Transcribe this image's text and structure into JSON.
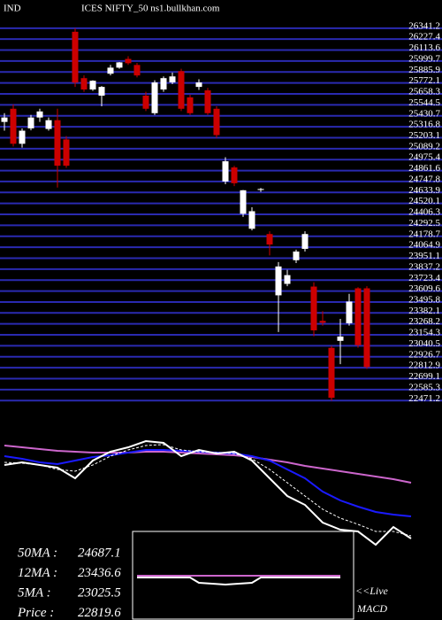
{
  "header": {
    "left": "IND",
    "right": "ICES NIFTY_50  ns1.bullkhan.com"
  },
  "chart_data": [
    {
      "type": "candlestick",
      "open": [
        25367,
        25504,
        25140,
        25300,
        25413,
        25294,
        25385,
        25185,
        26304,
        25822,
        25704,
        25640,
        25868,
        25931,
        26022,
        25959,
        25640,
        25458,
        25704,
        25777,
        25895,
        25622,
        25731,
        25695,
        25504,
        24748,
        24894,
        24412,
        24257,
        24660,
        24202,
        23565,
        23684,
        23930,
        24048,
        23656,
        23300,
        23019,
        23092,
        23274,
        23638,
        23638
      ],
      "high": [
        25458,
        25549,
        25300,
        25440,
        25504,
        25413,
        25504,
        25220,
        26341,
        25850,
        25800,
        25740,
        25960,
        25990,
        26050,
        25980,
        25680,
        25800,
        25840,
        25880,
        25920,
        25650,
        25810,
        25720,
        25530,
        25000,
        24910,
        24660,
        24480,
        24680,
        24230,
        23911,
        23830,
        24040,
        24230,
        23700,
        23400,
        23040,
        23320,
        23580,
        23650,
        23660
      ],
      "low": [
        25276,
        25112,
        25100,
        25280,
        25367,
        25276,
        24685,
        24890,
        25731,
        25680,
        25690,
        25530,
        25850,
        25920,
        25960,
        25830,
        25480,
        25440,
        25680,
        25760,
        25480,
        25440,
        25700,
        25440,
        25200,
        24720,
        24700,
        24380,
        24240,
        24640,
        23980,
        23183,
        23660,
        23900,
        24020,
        23140,
        23250,
        22470,
        22850,
        23250,
        23020,
        22800
      ],
      "close": [
        25413,
        25140,
        25276,
        25413,
        25476,
        25385,
        24912,
        24912,
        25776,
        25704,
        25795,
        25731,
        25931,
        25986,
        25977,
        25850,
        25504,
        25777,
        25822,
        25840,
        25504,
        25458,
        25777,
        25458,
        25230,
        24958,
        24730,
        24657,
        24439,
        24670,
        24093,
        23865,
        23775,
        24020,
        24202,
        23201,
        23280,
        22500,
        23137,
        23500,
        23047,
        22819.6
      ],
      "up_color": "#ffffff",
      "down_color": "#cc0000",
      "grid_color": "#2a2ab0",
      "ylim": [
        22400,
        26450
      ],
      "yticks": [
        26341.2,
        26227.4,
        26113.6,
        25999.7,
        25885.9,
        25772.1,
        25658.3,
        25544.5,
        25430.7,
        25316.8,
        25203.1,
        25089.2,
        24975.4,
        24861.6,
        24747.8,
        24633.9,
        24520.1,
        24406.3,
        24292.5,
        24178.7,
        24064.9,
        23951.1,
        23837.2,
        23723.4,
        23609.6,
        23495.8,
        23382.1,
        23268.2,
        23154.3,
        23040.5,
        22926.7,
        22812.9,
        22699.1,
        22585.3,
        22471.2
      ],
      "grid": true
    },
    {
      "type": "line",
      "x": [
        0,
        2,
        4,
        6,
        8,
        10,
        12,
        14,
        16,
        18,
        20,
        22,
        24,
        26,
        28,
        30,
        32,
        34,
        36,
        38,
        40,
        42,
        44,
        46
      ],
      "xlim": [
        0,
        46
      ],
      "ylim": [
        22400,
        26400
      ],
      "series": [
        {
          "color": "#cc66cc",
          "values": [
            26000,
            25938,
            25877,
            25815,
            25785,
            25754,
            25754,
            25754,
            25785,
            25785,
            25754,
            25723,
            25692,
            25662,
            25600,
            25508,
            25415,
            25292,
            25200,
            25108,
            25015,
            24923,
            24831,
            24708
          ]
        },
        {
          "color": "#1a1aff",
          "values": [
            25631,
            25538,
            25415,
            25354,
            25477,
            25600,
            25662,
            25754,
            25846,
            25846,
            25815,
            25785,
            25754,
            25723,
            25631,
            25477,
            25169,
            24862,
            24400,
            24092,
            23877,
            23692,
            23600,
            23538
          ]
        },
        {
          "color": "#ffffff",
          "dash": true,
          "values": [
            25415,
            25385,
            25323,
            25169,
            25108,
            25323,
            25631,
            25846,
            26000,
            26031,
            25846,
            25785,
            25754,
            25723,
            25538,
            25169,
            24708,
            24246,
            23785,
            23477,
            23262,
            23015,
            23015,
            22862
          ]
        },
        {
          "color": "#ffffff",
          "values": [
            25323,
            25415,
            25323,
            25231,
            24862,
            25477,
            25785,
            25938,
            26154,
            26092,
            25631,
            25846,
            25723,
            25785,
            25477,
            24862,
            24246,
            23938,
            23323,
            23077,
            23015,
            22554,
            23169,
            22769
          ]
        }
      ]
    },
    {
      "type": "line",
      "x": [
        15,
        20,
        21,
        22,
        25,
        28,
        29,
        38
      ],
      "xlim": [
        14.5,
        39.5
      ],
      "ylim": [
        -50,
        50
      ],
      "series": [
        {
          "color": "#cc66cc",
          "values": [
            0,
            0,
            0,
            0,
            0,
            0,
            0,
            0
          ]
        },
        {
          "color": "#ffffff",
          "values": [
            -2,
            -2,
            -2,
            -8,
            -10,
            -8,
            -2,
            -2
          ]
        }
      ]
    }
  ],
  "stats": [
    {
      "label": "50MA :",
      "value": 24687.1
    },
    {
      "label": "12MA :",
      "value": 23436.6
    },
    {
      "label": "5MA :",
      "value": 23025.5
    },
    {
      "label": "Price  :",
      "value": 22819.6
    }
  ],
  "live": "<<Live",
  "macd_label": "MACD"
}
